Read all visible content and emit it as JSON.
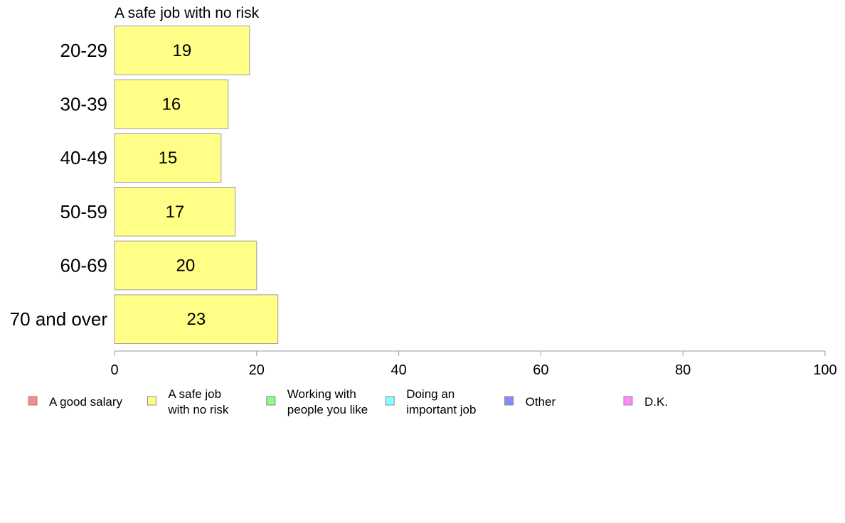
{
  "chart_data": {
    "type": "bar",
    "orientation": "horizontal",
    "title": "A safe job with no risk",
    "categories": [
      "20-29",
      "30-39",
      "40-49",
      "50-59",
      "60-69",
      "70 and over"
    ],
    "series": [
      {
        "name": "A safe job with no risk",
        "values": [
          19,
          16,
          15,
          17,
          20,
          23
        ],
        "color": "#ffff88"
      }
    ],
    "xlim": [
      0,
      100
    ],
    "xticks": [
      0,
      20,
      40,
      60,
      80,
      100
    ],
    "xlabel": "",
    "ylabel": "",
    "grid": false,
    "legend_position": "bottom",
    "legend": [
      {
        "lines": [
          "A good salary"
        ],
        "color": "#ff8888"
      },
      {
        "lines": [
          "A safe job",
          "with no risk"
        ],
        "color": "#ffff88"
      },
      {
        "lines": [
          "Working with",
          "people you like"
        ],
        "color": "#88ff88"
      },
      {
        "lines": [
          "Doing an",
          "important job"
        ],
        "color": "#88ffff"
      },
      {
        "lines": [
          "Other"
        ],
        "color": "#8888ff"
      },
      {
        "lines": [
          "D.K."
        ],
        "color": "#ff88ff"
      }
    ]
  }
}
